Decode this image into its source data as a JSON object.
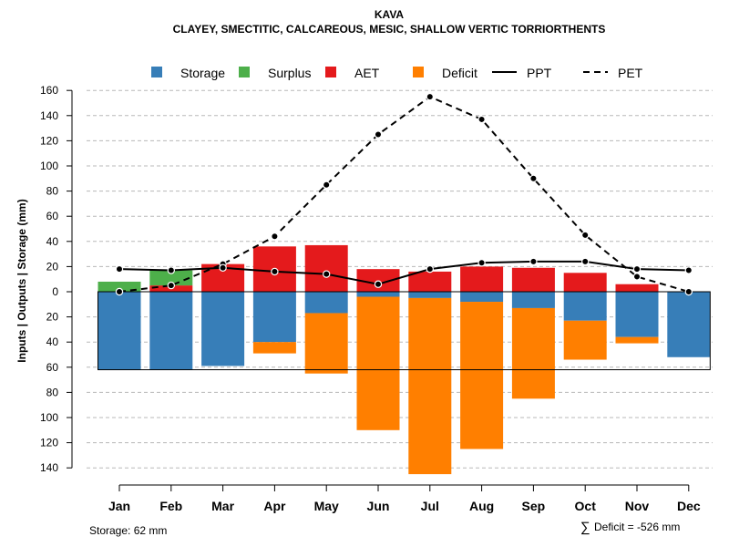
{
  "chart_data": {
    "type": "bar",
    "title": "KAVA",
    "subtitle": "CLAYEY, SMECTITIC, CALCAREOUS, MESIC, SHALLOW VERTIC TORRIORTHENTS",
    "ylabel": "Inputs | Outputs | Storage    (mm)",
    "ylim": [
      -140,
      160
    ],
    "yticks": [
      160,
      140,
      120,
      100,
      80,
      60,
      40,
      20,
      0,
      -20,
      -40,
      -60,
      -80,
      -100,
      -120,
      -140
    ],
    "ytick_labels": [
      "160",
      "140",
      "120",
      "100",
      "80",
      "60",
      "40",
      "20",
      "0",
      "20",
      "40",
      "60",
      "80",
      "100",
      "120",
      "140"
    ],
    "categories": [
      "Jan",
      "Feb",
      "Mar",
      "Apr",
      "May",
      "Jun",
      "Jul",
      "Aug",
      "Sep",
      "Oct",
      "Nov",
      "Dec"
    ],
    "legend": [
      {
        "name": "Storage",
        "kind": "box",
        "color": "#377EB8"
      },
      {
        "name": "Surplus",
        "kind": "box",
        "color": "#4DAF4A"
      },
      {
        "name": "AET",
        "kind": "box",
        "color": "#E41A1C"
      },
      {
        "name": "Deficit",
        "kind": "box",
        "color": "#FF7F00"
      },
      {
        "name": "PPT",
        "kind": "solid"
      },
      {
        "name": "PET",
        "kind": "dashed"
      }
    ],
    "series": [
      {
        "name": "Storage",
        "values": [
          -62,
          -62,
          -59,
          -40,
          -17,
          -4,
          -5,
          -8,
          -13,
          -23,
          -36,
          -52
        ]
      },
      {
        "name": "Surplus",
        "values": [
          8,
          12,
          0,
          0,
          0,
          0,
          0,
          0,
          0,
          0,
          0,
          0
        ]
      },
      {
        "name": "AET",
        "values": [
          0,
          5,
          22,
          36,
          37,
          18,
          16,
          20,
          19,
          15,
          6,
          0
        ]
      },
      {
        "name": "Deficit",
        "values": [
          0,
          0,
          0,
          -9,
          -48,
          -106,
          -140,
          -117,
          -72,
          -31,
          -5,
          0
        ]
      },
      {
        "name": "PPT",
        "values": [
          18,
          17,
          19,
          16,
          14,
          6,
          18,
          23,
          24,
          24,
          18,
          17
        ]
      },
      {
        "name": "PET",
        "values": [
          0,
          5,
          22,
          44,
          85,
          125,
          155,
          137,
          90,
          45,
          12,
          0
        ]
      }
    ],
    "storage_capacity": 62,
    "colors": {
      "storage": "#377EB8",
      "surplus": "#4DAF4A",
      "aet": "#E41A1C",
      "deficit": "#FF7F00"
    }
  },
  "notes": {
    "storage": "Storage: 62 mm",
    "deficit_symbol": "∑",
    "deficit": "Deficit = -526 mm"
  }
}
